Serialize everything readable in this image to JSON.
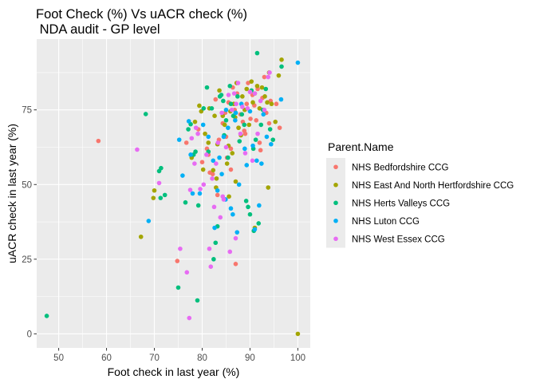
{
  "chart_data": {
    "type": "scatter",
    "title": "Foot Check (%) Vs uACR check (%)",
    "subtitle": " NDA audit - GP level",
    "xlabel": "Foot check in last year (%)",
    "ylabel": "uACR check in last year (%)",
    "xlim": [
      45.4,
      102.6
    ],
    "ylim": [
      -4.7,
      98.7
    ],
    "x_ticks": [
      50,
      60,
      70,
      80,
      90,
      100
    ],
    "y_ticks": [
      0,
      25,
      50,
      75
    ],
    "grid": true,
    "legend": {
      "title": "Parent.Name",
      "placement": "right"
    },
    "colors": {
      "panel_background": "#EBEBEB",
      "grid": "#FFFFFF"
    },
    "series": [
      {
        "name": "NHS Bedfordshire CCG",
        "color": "#F8766D",
        "points": [
          [
            58.3,
            64.6
          ],
          [
            74.8,
            24.4
          ],
          [
            76.7,
            64.0
          ],
          [
            79.2,
            68.5
          ],
          [
            80.0,
            57.5
          ],
          [
            81.0,
            62.0
          ],
          [
            81.3,
            60.0
          ],
          [
            81.6,
            54.0
          ],
          [
            82.2,
            53.5
          ],
          [
            82.8,
            78.5
          ],
          [
            83.5,
            65.0
          ],
          [
            84.3,
            70.5
          ],
          [
            84.8,
            74.0
          ],
          [
            85.0,
            66.0
          ],
          [
            85.5,
            77.5
          ],
          [
            86.0,
            62.0
          ],
          [
            86.4,
            82.5
          ],
          [
            86.8,
            75.0
          ],
          [
            87.0,
            23.4
          ],
          [
            87.3,
            80.5
          ],
          [
            87.6,
            69.0
          ],
          [
            88.0,
            73.5
          ],
          [
            88.5,
            71.0
          ],
          [
            89.0,
            67.0
          ],
          [
            89.3,
            77.0
          ],
          [
            89.6,
            84.0
          ],
          [
            90.1,
            72.0
          ],
          [
            90.5,
            80.0
          ],
          [
            90.9,
            76.5
          ],
          [
            91.3,
            71.5
          ],
          [
            91.6,
            82.0
          ],
          [
            92.0,
            64.0
          ],
          [
            92.2,
            61.5
          ],
          [
            92.6,
            79.0
          ],
          [
            93.0,
            86.0
          ],
          [
            93.4,
            74.0
          ],
          [
            94.0,
            70.5
          ],
          [
            94.3,
            78.0
          ],
          [
            95.5,
            77.0
          ],
          [
            96.2,
            69.0
          ],
          [
            86.0,
            55.0
          ],
          [
            83.2,
            46.5
          ],
          [
            85.2,
            59.0
          ],
          [
            88.8,
            68.0
          ]
        ]
      },
      {
        "name": "NHS East And North Hertfordshire CCG",
        "color": "#A3A500",
        "points": [
          [
            67.2,
            32.5
          ],
          [
            69.8,
            45.5
          ],
          [
            70.0,
            48.0
          ],
          [
            77.8,
            59.0
          ],
          [
            78.5,
            71.0
          ],
          [
            79.4,
            76.4
          ],
          [
            79.8,
            74.5
          ],
          [
            80.2,
            55.0
          ],
          [
            80.6,
            67.0
          ],
          [
            81.3,
            64.0
          ],
          [
            81.5,
            75.5
          ],
          [
            82.3,
            54.8
          ],
          [
            82.6,
            73.0
          ],
          [
            82.9,
            49.0
          ],
          [
            83.2,
            63.5
          ],
          [
            83.6,
            81.5
          ],
          [
            84.3,
            73.0
          ],
          [
            84.7,
            70.0
          ],
          [
            85.2,
            57.0
          ],
          [
            85.5,
            63.0
          ],
          [
            85.9,
            74.5
          ],
          [
            86.3,
            60.5
          ],
          [
            86.6,
            77.0
          ],
          [
            86.9,
            72.5
          ],
          [
            87.2,
            84.0
          ],
          [
            87.6,
            69.0
          ],
          [
            88.1,
            66.5
          ],
          [
            88.4,
            79.5
          ],
          [
            88.9,
            75.0
          ],
          [
            89.3,
            82.0
          ],
          [
            89.8,
            70.0
          ],
          [
            90.3,
            84.5
          ],
          [
            90.6,
            77.5
          ],
          [
            91.0,
            80.5
          ],
          [
            91.5,
            83.0
          ],
          [
            92.0,
            75.5
          ],
          [
            92.5,
            82.5
          ],
          [
            93.1,
            79.5
          ],
          [
            93.6,
            77.5
          ],
          [
            94.0,
            87.5
          ],
          [
            94.5,
            77.0
          ],
          [
            95.3,
            71.0
          ],
          [
            96.0,
            86.5
          ],
          [
            96.6,
            91.8
          ],
          [
            100.0,
            0.0
          ],
          [
            93.8,
            49.0
          ],
          [
            91.0,
            35.5
          ],
          [
            87.0,
            51.0
          ],
          [
            85.6,
            46.0
          ],
          [
            83.0,
            52.0
          ]
        ]
      },
      {
        "name": "NHS Herts Valleys CCG",
        "color": "#00BF7D",
        "points": [
          [
            47.5,
            6.0
          ],
          [
            68.2,
            73.6
          ],
          [
            71.0,
            54.5
          ],
          [
            71.4,
            55.5
          ],
          [
            71.3,
            45.5
          ],
          [
            72.2,
            46.5
          ],
          [
            75.0,
            15.5
          ],
          [
            76.5,
            44.0
          ],
          [
            77.1,
            68.5
          ],
          [
            77.6,
            70.2
          ],
          [
            78.2,
            60.0
          ],
          [
            78.6,
            61.0
          ],
          [
            79.0,
            11.2
          ],
          [
            79.2,
            43.0
          ],
          [
            80.3,
            75.5
          ],
          [
            81.0,
            82.5
          ],
          [
            81.3,
            61.0
          ],
          [
            82.0,
            75.5
          ],
          [
            82.8,
            30.5
          ],
          [
            82.4,
            25.0
          ],
          [
            83.2,
            36.0
          ],
          [
            83.7,
            79.5
          ],
          [
            84.0,
            80.0
          ],
          [
            84.4,
            78.0
          ],
          [
            84.6,
            66.5
          ],
          [
            85.0,
            71.5
          ],
          [
            85.4,
            59.0
          ],
          [
            86.0,
            77.0
          ],
          [
            86.5,
            73.0
          ],
          [
            87.0,
            74.0
          ],
          [
            87.4,
            79.5
          ],
          [
            87.8,
            64.5
          ],
          [
            88.3,
            73.5
          ],
          [
            88.8,
            70.0
          ],
          [
            89.2,
            44.5
          ],
          [
            89.6,
            42.5
          ],
          [
            90.0,
            40.0
          ],
          [
            90.3,
            81.5
          ],
          [
            90.7,
            62.0
          ],
          [
            91.2,
            65.0
          ],
          [
            91.5,
            94.0
          ],
          [
            91.8,
            37.0
          ],
          [
            92.3,
            70.0
          ],
          [
            92.7,
            75.0
          ],
          [
            93.3,
            82.0
          ],
          [
            94.2,
            68.5
          ],
          [
            94.8,
            65.0
          ],
          [
            96.6,
            89.5
          ],
          [
            90.8,
            34.5
          ],
          [
            85.8,
            83.0
          ]
        ]
      },
      {
        "name": "NHS Luton CCG",
        "color": "#00B0F6",
        "points": [
          [
            68.8,
            37.8
          ],
          [
            75.2,
            65.0
          ],
          [
            75.9,
            53.0
          ],
          [
            77.2,
            71.2
          ],
          [
            77.6,
            60.0
          ],
          [
            78.0,
            47.0
          ],
          [
            79.5,
            47.0
          ],
          [
            80.2,
            70.0
          ],
          [
            81.3,
            66.0
          ],
          [
            82.3,
            58.0
          ],
          [
            82.6,
            35.5
          ],
          [
            83.2,
            48.0
          ],
          [
            83.6,
            59.0
          ],
          [
            84.1,
            53.5
          ],
          [
            84.5,
            66.0
          ],
          [
            84.9,
            45.0
          ],
          [
            85.4,
            69.0
          ],
          [
            86.0,
            42.0
          ],
          [
            86.4,
            40.0
          ],
          [
            86.9,
            71.5
          ],
          [
            87.3,
            34.0
          ],
          [
            87.7,
            50.0
          ],
          [
            88.2,
            77.0
          ],
          [
            88.9,
            62.0
          ],
          [
            89.3,
            56.5
          ],
          [
            90.0,
            74.5
          ],
          [
            90.6,
            63.0
          ],
          [
            91.0,
            35.0
          ],
          [
            91.4,
            58.0
          ],
          [
            91.9,
            43.0
          ],
          [
            92.4,
            57.0
          ],
          [
            92.8,
            73.5
          ],
          [
            93.5,
            66.0
          ],
          [
            94.4,
            63.5
          ],
          [
            96.5,
            78.5
          ],
          [
            100.0,
            90.8
          ],
          [
            85.0,
            75.0
          ],
          [
            87.0,
            74.0
          ]
        ]
      },
      {
        "name": "NHS West Essex CCG",
        "color": "#E76BF3",
        "points": [
          [
            66.4,
            61.7
          ],
          [
            71.0,
            50.5
          ],
          [
            75.4,
            28.5
          ],
          [
            76.8,
            20.6
          ],
          [
            77.3,
            5.3
          ],
          [
            77.5,
            48.2
          ],
          [
            77.8,
            65.5
          ],
          [
            78.4,
            57.0
          ],
          [
            78.7,
            69.0
          ],
          [
            79.1,
            67.0
          ],
          [
            79.6,
            48.5
          ],
          [
            80.3,
            50.0
          ],
          [
            80.9,
            60.0
          ],
          [
            81.5,
            28.5
          ],
          [
            81.8,
            22.5
          ],
          [
            82.1,
            52.0
          ],
          [
            82.5,
            42.5
          ],
          [
            82.9,
            57.0
          ],
          [
            83.3,
            64.0
          ],
          [
            83.8,
            39.0
          ],
          [
            84.1,
            74.0
          ],
          [
            84.5,
            45.0
          ],
          [
            85.0,
            62.5
          ],
          [
            85.5,
            80.0
          ],
          [
            85.8,
            27.5
          ],
          [
            86.2,
            75.0
          ],
          [
            86.7,
            80.5
          ],
          [
            87.1,
            77.0
          ],
          [
            87.5,
            84.0
          ],
          [
            88.0,
            67.0
          ],
          [
            88.4,
            76.0
          ],
          [
            89.0,
            60.5
          ],
          [
            89.5,
            75.5
          ],
          [
            90.0,
            81.0
          ],
          [
            90.5,
            58.0
          ],
          [
            91.0,
            80.5
          ],
          [
            91.6,
            67.0
          ],
          [
            92.2,
            78.0
          ],
          [
            93.0,
            75.0
          ],
          [
            93.8,
            86.0
          ],
          [
            94.1,
            87.5
          ],
          [
            87.0,
            32.0
          ],
          [
            84.3,
            46.0
          ]
        ]
      }
    ]
  }
}
